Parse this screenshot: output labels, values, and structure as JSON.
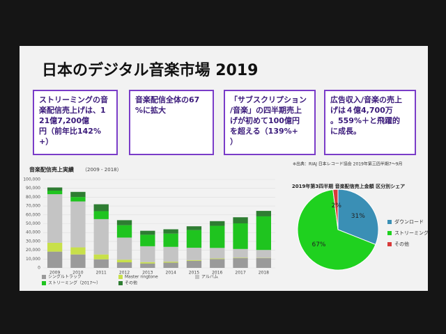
{
  "header": {
    "title": "日本のデジタル音楽市場 2019"
  },
  "boxes": [
    {
      "text": "ストリーミングの音楽配信売上げは、121億7,200億円（前年比142%+）"
    },
    {
      "text": "音楽配信全体の67%に拡大"
    },
    {
      "text": "「サブスクリプション/音楽」の四半期売上げが初めて100億円を超える（139%+）"
    },
    {
      "text": "広告収入/音楽の売上げは４億4,700万。559%＋と飛躍的に成長。"
    }
  ],
  "source": "※出典：RIAJ 日本レコード協会 2019年第三四半期7～9月",
  "chart_data": [
    {
      "type": "bar",
      "stacked": true,
      "title": "音楽配信売上実績",
      "subtitle": "（2009 - 2018）",
      "categories": [
        "2009",
        "2010",
        "2011",
        "2012",
        "2013",
        "2014",
        "2015",
        "2016",
        "2017",
        "2018"
      ],
      "series": [
        {
          "name": "シングルトラック",
          "color": "#9a9a9a",
          "values": [
            18400,
            15200,
            9700,
            6300,
            5000,
            6000,
            8000,
            10000,
            11000,
            11000
          ]
        },
        {
          "name": "Master ringtone",
          "color": "#c8e04a",
          "values": [
            10000,
            8000,
            5500,
            3000,
            1500,
            1000,
            800,
            600,
            400,
            300
          ]
        },
        {
          "name": "アルバム",
          "color": "#c4c4c4",
          "values": [
            55000,
            52000,
            40000,
            25000,
            18000,
            16800,
            14000,
            12000,
            10000,
            9000
          ]
        },
        {
          "name": "ストリーミング（2017～）",
          "color": "#1fc41f",
          "values": [
            4000,
            5000,
            9000,
            14000,
            13000,
            15000,
            20000,
            25000,
            29000,
            38000
          ]
        },
        {
          "name": "その他",
          "color": "#2e7d32",
          "values": [
            3600,
            5800,
            7800,
            5700,
            4500,
            4900,
            4300,
            5300,
            6900,
            6200
          ]
        }
      ],
      "ylim": [
        0,
        100000
      ],
      "yticks": [
        0,
        {
          "value": 10000,
          "label": "10,000"
        },
        {
          "value": 20000,
          "label": "20,000"
        },
        {
          "value": 30000,
          "label": "30,000"
        },
        {
          "value": 40000,
          "label": "40,000"
        },
        {
          "value": 50000,
          "label": "50,000"
        },
        {
          "value": 60000,
          "label": "60,000"
        },
        {
          "value": 70000,
          "label": "70,000"
        },
        {
          "value": 80000,
          "label": "80,000"
        },
        {
          "value": 90000,
          "label": "90,000"
        },
        {
          "value": 100000,
          "label": "100,000"
        }
      ],
      "grid": true
    },
    {
      "type": "pie",
      "title": "2019年第3四半期 音楽配信売上金額 区分別シェア",
      "categories": [
        "ダウンロード",
        "ストリーミング",
        "その他"
      ],
      "values": [
        31,
        67,
        2
      ],
      "value_labels": [
        "31%",
        "67%",
        "2%"
      ],
      "colors": [
        "#3a8fb5",
        "#1fd11f",
        "#d83a3a"
      ]
    }
  ]
}
